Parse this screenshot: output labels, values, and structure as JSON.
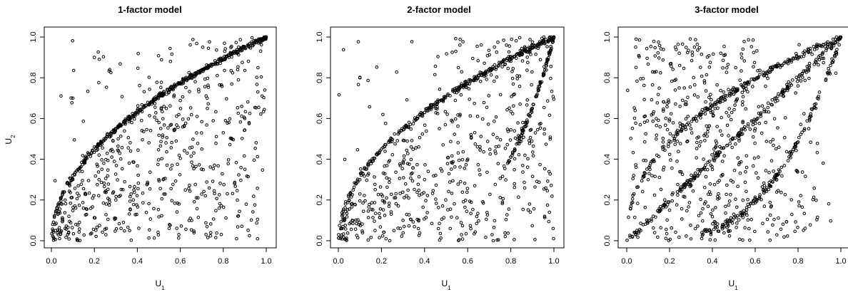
{
  "figure": {
    "background": "#ffffff",
    "point_color": "#000000"
  },
  "chart_data": [
    {
      "type": "scatter",
      "title": "1-factor model",
      "xlabel": "U1",
      "ylabel": "U2",
      "xlim": [
        0,
        1
      ],
      "ylim": [
        0,
        1
      ],
      "xticks": [
        "0.0",
        "0.2",
        "0.4",
        "0.6",
        "0.8",
        "1.0"
      ],
      "yticks": [
        "0.0",
        "0.2",
        "0.4",
        "0.6",
        "0.8",
        "1.0"
      ],
      "grid": false,
      "n_points_approx": 1000,
      "structure": "dense ridge along u2 = sqrt(u1) (concave curve from (0,0) to (1,1)); diffuse points mostly below the ridge, sparse above it",
      "sample_points": [
        [
          0.02,
          0.05
        ],
        [
          0.05,
          0.18
        ],
        [
          0.1,
          0.3
        ],
        [
          0.2,
          0.46
        ],
        [
          0.3,
          0.55
        ],
        [
          0.4,
          0.63
        ],
        [
          0.5,
          0.71
        ],
        [
          0.6,
          0.77
        ],
        [
          0.7,
          0.84
        ],
        [
          0.8,
          0.89
        ],
        [
          0.9,
          0.95
        ],
        [
          1.0,
          1.0
        ],
        [
          0.3,
          0.2
        ],
        [
          0.5,
          0.3
        ],
        [
          0.7,
          0.45
        ],
        [
          0.9,
          0.6
        ],
        [
          0.2,
          0.9
        ],
        [
          0.1,
          0.7
        ]
      ]
    },
    {
      "type": "scatter",
      "title": "2-factor model",
      "xlabel": "U1",
      "ylabel": "",
      "xlim": [
        0,
        1
      ],
      "ylim": [
        0,
        1
      ],
      "xticks": [
        "0.0",
        "0.2",
        "0.4",
        "0.6",
        "0.8",
        "1.0"
      ],
      "yticks": [
        "0.0",
        "0.2",
        "0.4",
        "0.6",
        "0.8",
        "1.0"
      ],
      "grid": false,
      "n_points_approx": 1000,
      "structure": "dense ridge along u2 = sqrt(u1) plus a second ridge u2 = u1^4 converging at (1,1); diffuse points in between",
      "sample_points": [
        [
          0.05,
          0.2
        ],
        [
          0.1,
          0.3
        ],
        [
          0.2,
          0.45
        ],
        [
          0.4,
          0.63
        ],
        [
          0.6,
          0.77
        ],
        [
          0.8,
          0.89
        ],
        [
          1.0,
          1.0
        ],
        [
          0.8,
          0.41
        ],
        [
          0.9,
          0.65
        ],
        [
          0.95,
          0.81
        ],
        [
          0.4,
          0.3
        ],
        [
          0.6,
          0.4
        ],
        [
          0.3,
          0.1
        ],
        [
          0.1,
          0.8
        ]
      ]
    },
    {
      "type": "scatter",
      "title": "3-factor model",
      "xlabel": "U1",
      "ylabel": "",
      "xlim": [
        0,
        1
      ],
      "ylim": [
        0,
        1
      ],
      "xticks": [
        "0.0",
        "0.2",
        "0.4",
        "0.6",
        "0.8",
        "1.0"
      ],
      "yticks": [
        "0.0",
        "0.2",
        "0.4",
        "0.6",
        "0.8",
        "1.0"
      ],
      "grid": false,
      "n_points_approx": 1000,
      "structure": "three ridges converging at (1,1): upper concave curve, near-diagonal line, and lower convex curve; diffuse points throughout",
      "sample_points": [
        [
          0.1,
          0.3
        ],
        [
          0.3,
          0.55
        ],
        [
          0.5,
          0.72
        ],
        [
          0.7,
          0.86
        ],
        [
          0.9,
          0.96
        ],
        [
          0.2,
          0.15
        ],
        [
          0.4,
          0.35
        ],
        [
          0.6,
          0.55
        ],
        [
          0.8,
          0.76
        ],
        [
          0.5,
          0.13
        ],
        [
          0.7,
          0.3
        ],
        [
          0.85,
          0.55
        ],
        [
          0.95,
          0.82
        ],
        [
          1.0,
          1.0
        ]
      ]
    }
  ]
}
